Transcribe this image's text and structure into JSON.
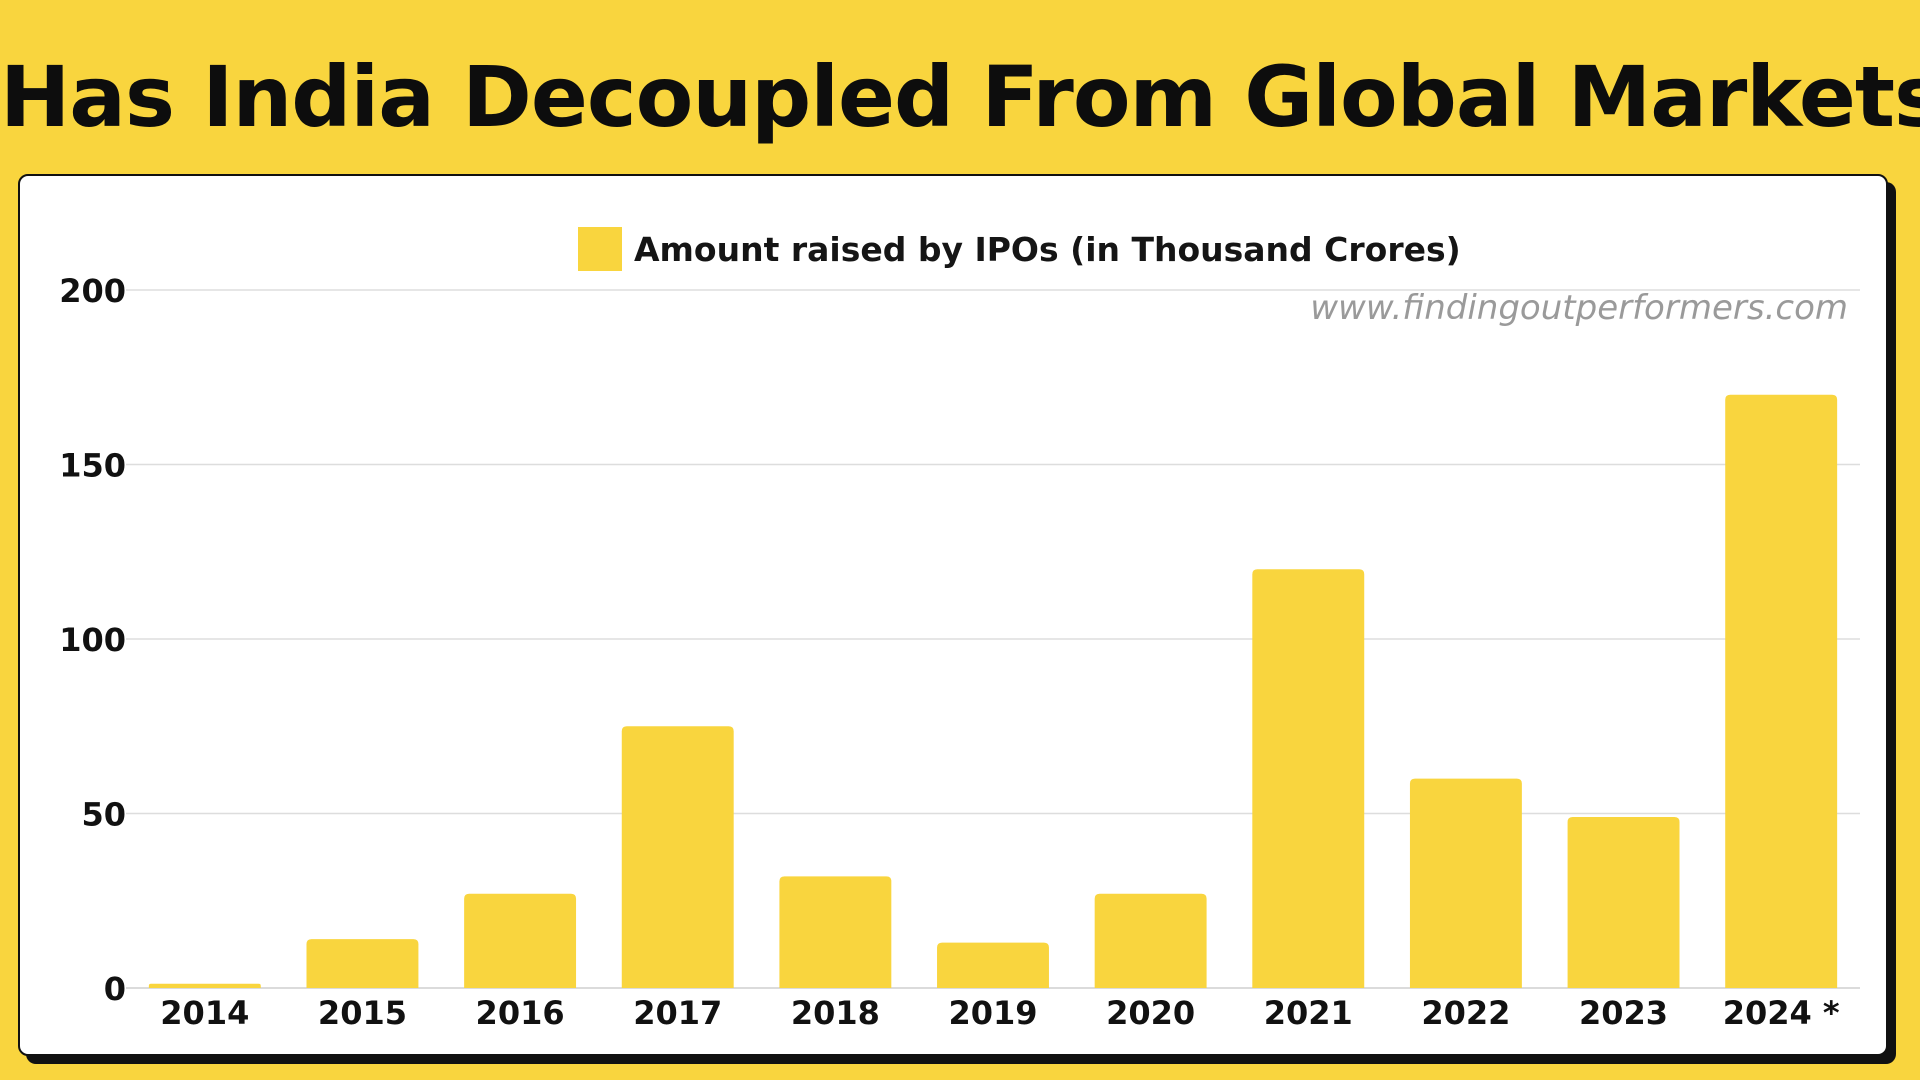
{
  "header": {
    "title": "Has India Decoupled From Global Markets?"
  },
  "watermark": "www.findingoutperformers.com",
  "colors": {
    "background": "#F9D53E",
    "bar": "#F9D53E",
    "grid": "#dddddd",
    "text": "#111111"
  },
  "chart_data": {
    "type": "bar",
    "title": "Has India Decoupled From Global Markets?",
    "xlabel": "",
    "ylabel": "",
    "categories": [
      "2014",
      "2015",
      "2016",
      "2017",
      "2018",
      "2019",
      "2020",
      "2021",
      "2022",
      "2023",
      "2024 *"
    ],
    "series": [
      {
        "name": "Amount raised by IPOs (in Thousand Crores)",
        "values": [
          1.2,
          14,
          27,
          75,
          32,
          13,
          27,
          120,
          60,
          49,
          170
        ]
      }
    ],
    "ylim": [
      0,
      200
    ],
    "yticks": [
      "0",
      "50",
      "100",
      "150",
      "200"
    ],
    "grid": true,
    "legend_position": "top-center"
  }
}
